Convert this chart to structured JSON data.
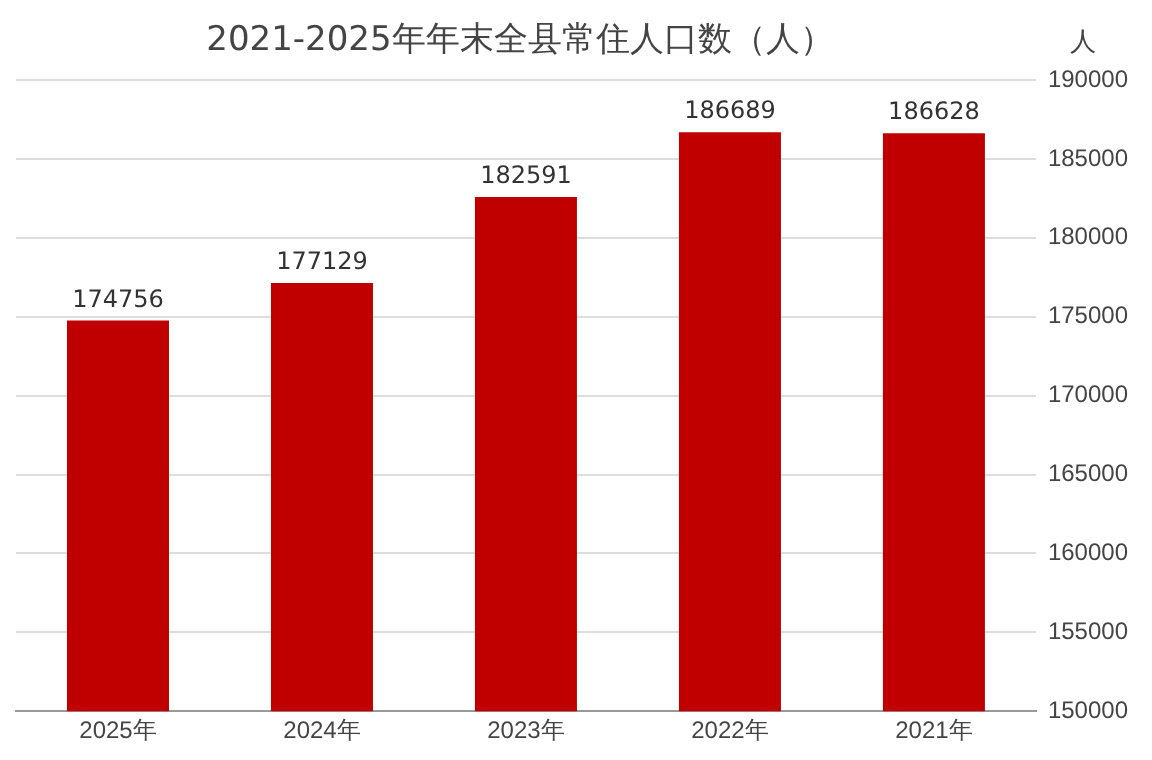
{
  "chart_data": {
    "type": "bar",
    "title": "2021-2025年年末全县常住人口数（人）",
    "ylabel": "人",
    "categories": [
      "2025年",
      "2024年",
      "2023年",
      "2022年",
      "2021年"
    ],
    "values": [
      174756,
      177129,
      182591,
      186689,
      186628
    ],
    "color": "#c00000",
    "ylim": [
      150000,
      190000
    ],
    "yticks": [
      150000,
      155000,
      160000,
      165000,
      170000,
      175000,
      180000,
      185000,
      190000
    ],
    "grid": "y",
    "data_labels": true,
    "legend": false
  }
}
